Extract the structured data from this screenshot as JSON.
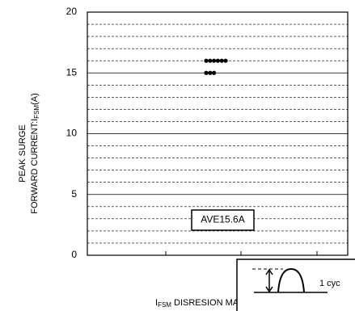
{
  "chart_data": {
    "type": "dot",
    "values": [
      16,
      16,
      16,
      16,
      16,
      16,
      15,
      15,
      15
    ],
    "color": "#000000",
    "ylim": [
      0,
      20
    ],
    "yticks": [
      0,
      5,
      10,
      15,
      20
    ],
    "yticks_minor": [
      1,
      2,
      3,
      4,
      6,
      7,
      8,
      9,
      11,
      12,
      13,
      14,
      16,
      17,
      18,
      19
    ],
    "grid": true,
    "y_label": {
      "line1": "PEAK SURGE",
      "line2": "FORWARD CURRENT:I",
      "sub": "FSM",
      "suffix": "(A)"
    },
    "x_label": {
      "prefix": "I",
      "sub": "FSM",
      "text": " DISRESION MAP"
    },
    "annotation": "AVE15.6A",
    "inset_label": "1 cyc"
  }
}
